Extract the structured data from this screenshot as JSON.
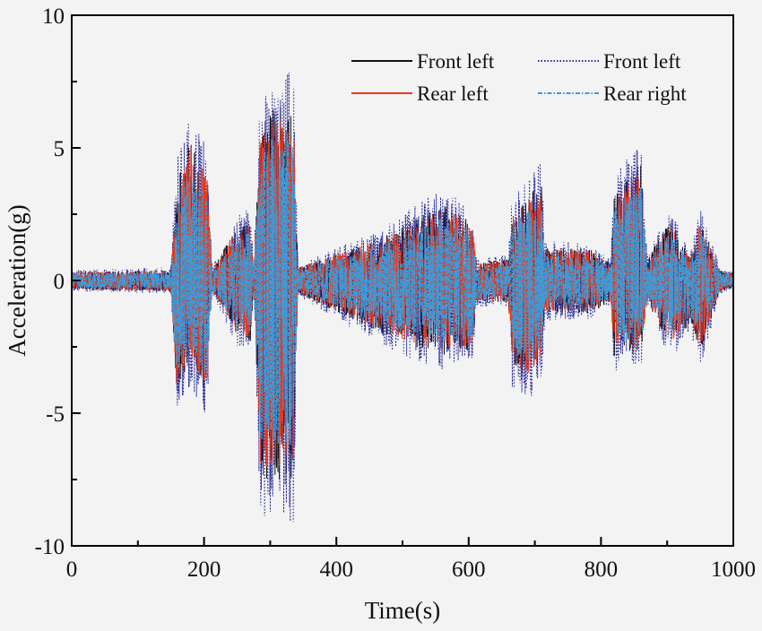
{
  "chart_data": {
    "type": "line",
    "title": "",
    "xlabel": "Time(s)",
    "ylabel": "Acceleration(g)",
    "xlim": [
      0,
      1000
    ],
    "ylim": [
      -10,
      10
    ],
    "xticks": [
      "0",
      "200",
      "400",
      "600",
      "800",
      "1000"
    ],
    "yticks": [
      "10",
      "5",
      "0",
      "-5",
      "-10"
    ],
    "grid": false,
    "legend_position": "top-right",
    "series": [
      {
        "name": "Front left",
        "color": "#111111",
        "style": "solid"
      },
      {
        "name": "Front left",
        "color": "#2b2b9a",
        "style": "dotted"
      },
      {
        "name": "Rear left",
        "color": "#e8391c",
        "style": "solid"
      },
      {
        "name": "Rear right",
        "color": "#3e9ad8",
        "style": "dash-dot"
      }
    ],
    "envelope": {
      "time": [
        0,
        150,
        158,
        180,
        205,
        212,
        250,
        270,
        275,
        285,
        300,
        335,
        342,
        470,
        560,
        605,
        612,
        660,
        665,
        690,
        710,
        715,
        780,
        815,
        820,
        860,
        870,
        905,
        935,
        950,
        980,
        1000
      ],
      "upper": [
        0.4,
        0.5,
        4.5,
        6.5,
        5,
        0.5,
        2.5,
        2.8,
        0.5,
        7,
        8,
        8.2,
        0.6,
        2,
        3.5,
        2.8,
        0.8,
        1,
        3,
        4,
        4.5,
        1.5,
        1.5,
        0.8,
        4,
        5.4,
        1,
        2.8,
        1,
        2.8,
        0.5,
        0.3
      ],
      "lower": [
        -0.4,
        -0.5,
        -5,
        -4,
        -5.3,
        -0.5,
        -2.5,
        -2.8,
        -0.5,
        -9,
        -9.2,
        -9.3,
        -0.6,
        -2.5,
        -3.5,
        -3.2,
        -1,
        -1,
        -4,
        -4.5,
        -4,
        -1.5,
        -1.5,
        -1,
        -3.5,
        -3.5,
        -1,
        -3,
        -2,
        -3.3,
        -0.5,
        -0.3
      ]
    }
  }
}
